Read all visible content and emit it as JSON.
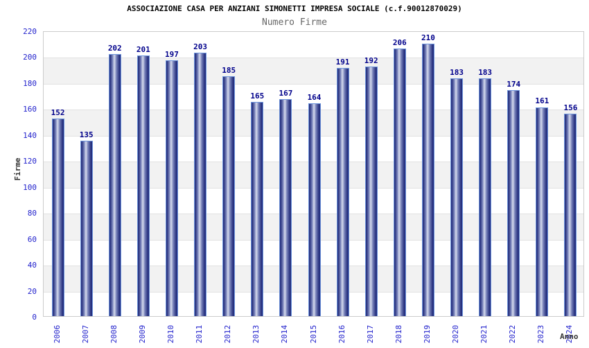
{
  "chart_data": {
    "type": "bar",
    "title": "ASSOCIAZIONE CASA PER ANZIANI SIMONETTI IMPRESA SOCIALE (c.f.90012870029)",
    "subtitle": "Numero Firme",
    "xlabel": "Anno",
    "ylabel": "Firme",
    "categories": [
      "2006",
      "2007",
      "2008",
      "2009",
      "2010",
      "2011",
      "2012",
      "2013",
      "2014",
      "2015",
      "2016",
      "2017",
      "2018",
      "2019",
      "2020",
      "2021",
      "2022",
      "2023",
      "2024"
    ],
    "values": [
      152,
      135,
      202,
      201,
      197,
      203,
      185,
      165,
      167,
      164,
      191,
      192,
      206,
      210,
      183,
      183,
      174,
      161,
      156
    ],
    "ylim": [
      0,
      220
    ],
    "ytick_step": 20,
    "grid": true,
    "legend": "none",
    "bands": "alternating horizontal gray/white stripes every 20 units",
    "bar_value_labels": true,
    "colors": {
      "bar_dark": "#27317f",
      "bar_mid": "#7a84bb",
      "bar_highlight": "#d7dcee",
      "bar_border": "#6e95dd",
      "tick_label": "#2222cc",
      "value_label": "#00008b",
      "band": "#f2f2f2",
      "gridline": "#e2e2e2",
      "frame": "#cccccc",
      "title": "#000000",
      "subtitle": "#666666",
      "axis_title": "#333333"
    }
  }
}
